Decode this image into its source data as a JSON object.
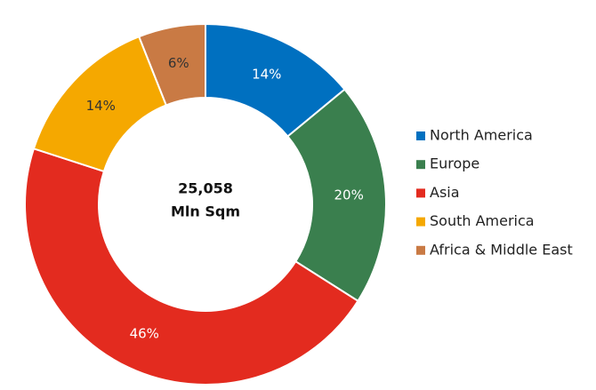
{
  "chart_data": {
    "type": "donut",
    "categories": [
      "North America",
      "Europe",
      "Asia",
      "South America",
      "Africa & Middle East"
    ],
    "values": [
      14,
      20,
      46,
      14,
      6
    ],
    "value_labels": [
      "14%",
      "20%",
      "46%",
      "14%",
      "6%"
    ],
    "colors": [
      "#0070c0",
      "#3a7f4e",
      "#e32b1f",
      "#f5a800",
      "#c97a44"
    ],
    "label_colors": [
      "#ffffff",
      "#ffffff",
      "#ffffff",
      "#333333",
      "#333333"
    ],
    "center_text": [
      "25,058",
      "Mln Sqm"
    ],
    "legend": "right"
  }
}
